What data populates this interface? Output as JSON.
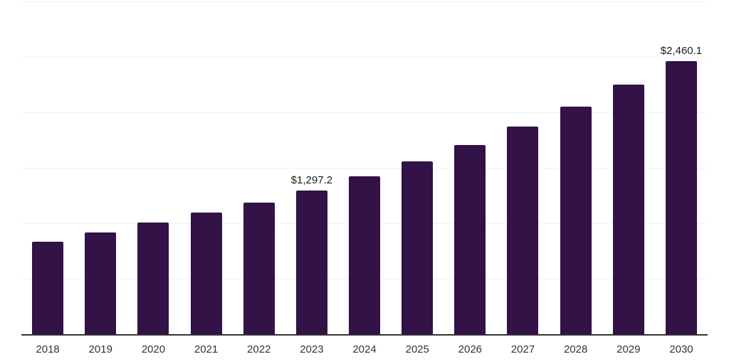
{
  "chart_data": {
    "type": "bar",
    "title": "",
    "categories": [
      "2018",
      "2019",
      "2020",
      "2021",
      "2022",
      "2023",
      "2024",
      "2025",
      "2026",
      "2027",
      "2028",
      "2029",
      "2030"
    ],
    "values": [
      836.5,
      916.7,
      1006.4,
      1096.2,
      1187.9,
      1297.2,
      1421.2,
      1559.7,
      1703.3,
      1873.8,
      2051.3,
      2250.1,
      2460.1
    ],
    "data_labels": [
      "",
      "",
      "",
      "",
      "",
      "$1,297.2",
      "",
      "",
      "",
      "",
      "",
      "",
      "$2,460.1"
    ],
    "xlabel": "",
    "ylabel": "",
    "ylim": [
      0,
      3000
    ],
    "gridline_step": 500,
    "grid": true,
    "legend": false,
    "y_tick_labels_visible": false
  },
  "colors": {
    "background": "#ffffff",
    "bar": "#321247",
    "axis": "#333333",
    "gridline": "#f2f0f4",
    "value_label": "#1c1c1c",
    "tick_label": "#333333"
  }
}
